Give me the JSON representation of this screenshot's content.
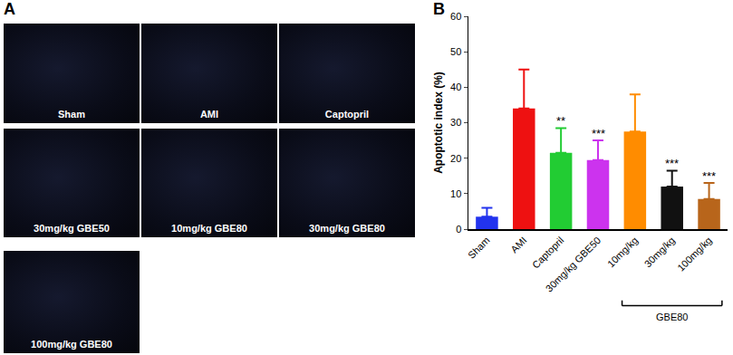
{
  "panel_a": {
    "label": "A",
    "images": [
      "Sham",
      "AMI",
      "Captopril",
      "30mg/kg GBE50",
      "10mg/kg GBE80",
      "30mg/kg GBE80",
      "100mg/kg GBE80"
    ]
  },
  "chart_data": {
    "panel_label": "B",
    "type": "bar",
    "ylabel": "Apoptotic index (%)",
    "categories": [
      "Sham",
      "AMI",
      "Captopril",
      "30mg/kg GBE50",
      "10mg/kg",
      "30mg/kg",
      "100mg/kg"
    ],
    "values": [
      3.5,
      34,
      21.5,
      19.5,
      27.5,
      12,
      8.5
    ],
    "errors": [
      2.5,
      11,
      7,
      5.5,
      10.5,
      4.5,
      4.5
    ],
    "colors": [
      "#2233ee",
      "#ee1111",
      "#22cc33",
      "#cc33ee",
      "#ff8c00",
      "#111111",
      "#b8651b"
    ],
    "significance": [
      null,
      null,
      "**",
      "***",
      null,
      "***",
      "***"
    ],
    "group": {
      "label": "GBE80",
      "categories": [
        "10mg/kg",
        "30mg/kg",
        "100mg/kg"
      ]
    },
    "ylim": [
      0,
      60
    ],
    "yticks": [
      0,
      10,
      20,
      30,
      40,
      50,
      60
    ],
    "grid": false
  }
}
